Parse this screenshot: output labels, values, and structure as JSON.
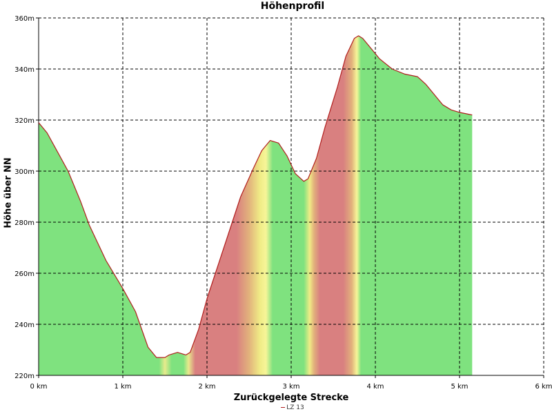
{
  "chart_data": {
    "type": "area",
    "title": "Höhenprofil",
    "xlabel": "Zurückgelegte Strecke",
    "ylabel": "Höhe über NN",
    "xlim": [
      0,
      6
    ],
    "ylim": [
      220,
      360
    ],
    "x_ticks": [
      0,
      1,
      2,
      3,
      4,
      5,
      6
    ],
    "x_tick_labels": [
      "0 km",
      "1 km",
      "2 km",
      "3 km",
      "4 km",
      "5 km",
      "6 km"
    ],
    "y_ticks": [
      220,
      240,
      260,
      280,
      300,
      320,
      340,
      360
    ],
    "y_tick_labels": [
      "220m",
      "240m",
      "260m",
      "280m",
      "300m",
      "320m",
      "340m",
      "360m"
    ],
    "grid": true,
    "legend_placement": "bottom-center",
    "series": [
      {
        "name": "LZ 13",
        "color": "#b01c1c",
        "x": [
          0,
          0.1,
          0.2,
          0.35,
          0.5,
          0.6,
          0.8,
          1.0,
          1.15,
          1.3,
          1.4,
          1.5,
          1.55,
          1.65,
          1.75,
          1.8,
          1.9,
          2.0,
          2.1,
          2.25,
          2.4,
          2.55,
          2.65,
          2.75,
          2.85,
          2.95,
          3.05,
          3.15,
          3.2,
          3.3,
          3.4,
          3.55,
          3.65,
          3.75,
          3.8,
          3.85,
          3.95,
          4.05,
          4.2,
          4.35,
          4.5,
          4.6,
          4.7,
          4.8,
          4.9,
          5.0,
          5.15
        ],
        "y": [
          319,
          315,
          309,
          300,
          288,
          279,
          265,
          254,
          245,
          231,
          227,
          227,
          228,
          229,
          228,
          229,
          238,
          250,
          260,
          275,
          290,
          301,
          308,
          312,
          311,
          306,
          299,
          296,
          297,
          305,
          317,
          333,
          345,
          352,
          353,
          352,
          348,
          344,
          340,
          338,
          337,
          334,
          330,
          326,
          324,
          323,
          322
        ]
      }
    ],
    "fill_gradient_stops": [
      {
        "x": 0.0,
        "color": "#7fe27f"
      },
      {
        "x": 1.43,
        "color": "#7fe27f"
      },
      {
        "x": 1.5,
        "color": "#e8ea8c"
      },
      {
        "x": 1.58,
        "color": "#7fe27f"
      },
      {
        "x": 1.72,
        "color": "#7fe27f"
      },
      {
        "x": 1.78,
        "color": "#e8ea8c"
      },
      {
        "x": 1.86,
        "color": "#d98080"
      },
      {
        "x": 2.35,
        "color": "#d98080"
      },
      {
        "x": 2.5,
        "color": "#e2b27c"
      },
      {
        "x": 2.63,
        "color": "#f0ec86"
      },
      {
        "x": 2.7,
        "color": "#f7f598"
      },
      {
        "x": 2.78,
        "color": "#7fe27f"
      },
      {
        "x": 3.15,
        "color": "#7fe27f"
      },
      {
        "x": 3.22,
        "color": "#f0ec86"
      },
      {
        "x": 3.27,
        "color": "#e2b27c"
      },
      {
        "x": 3.34,
        "color": "#d98080"
      },
      {
        "x": 3.62,
        "color": "#d98080"
      },
      {
        "x": 3.72,
        "color": "#e2b27c"
      },
      {
        "x": 3.78,
        "color": "#f7f598"
      },
      {
        "x": 3.83,
        "color": "#7fe27f"
      },
      {
        "x": 5.15,
        "color": "#7fe27f"
      }
    ]
  }
}
